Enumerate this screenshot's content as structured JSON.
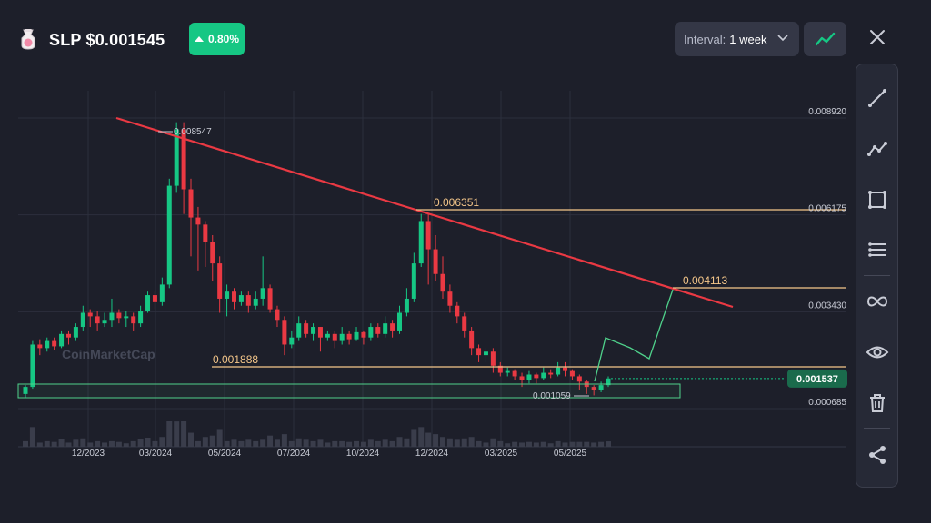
{
  "header": {
    "title": "SLP $0.001545",
    "change": "0.80%",
    "interval_label": "Interval:",
    "interval_value": "1 week"
  },
  "icons": [
    "coin-icon",
    "arrow-up-icon",
    "chevron-down-icon",
    "line-chart-icon",
    "close-icon",
    "trendline-icon",
    "polyline-icon",
    "rectangle-icon",
    "horizontal-lines-icon",
    "infinity-icon",
    "eye-icon",
    "trash-icon",
    "share-icon"
  ],
  "colors": {
    "up": "#16c784",
    "down": "#ea3943",
    "trend": "#ea3943",
    "level": "#f5c78a",
    "zone": "#4fd18b",
    "bg": "#1d1f2a"
  },
  "watermark": "CoinMarketCap",
  "chart_data": {
    "type": "candlestick",
    "x_ticks": [
      "12/2023",
      "03/2024",
      "05/2024",
      "07/2024",
      "10/2024",
      "12/2024",
      "03/2025",
      "05/2025"
    ],
    "y_ticks": [
      "0.008920",
      "0.006175",
      "0.003430",
      "0.000685"
    ],
    "y_tick_values": [
      0.00892,
      0.006175,
      0.00343,
      0.000685
    ],
    "current_price": "0.001537",
    "current_price_value": 0.001537,
    "annotations": {
      "high": "0.008547",
      "low": "0.001059",
      "resistance_1": "0.006351",
      "target": "0.004113",
      "support": "0.001888"
    },
    "candles": [
      [
        0.0011,
        0.0013,
        0.001,
        0.00135
      ],
      [
        0.0013,
        0.0025,
        0.00125,
        0.0026
      ],
      [
        0.0025,
        0.0024,
        0.0022,
        0.00265
      ],
      [
        0.0024,
        0.0026,
        0.0023,
        0.0027
      ],
      [
        0.0026,
        0.00245,
        0.00235,
        0.0027
      ],
      [
        0.00245,
        0.0028,
        0.0024,
        0.0029
      ],
      [
        0.0028,
        0.0027,
        0.0025,
        0.0029
      ],
      [
        0.0027,
        0.003,
        0.0026,
        0.0031
      ],
      [
        0.003,
        0.0034,
        0.0029,
        0.0036
      ],
      [
        0.0034,
        0.0033,
        0.003,
        0.0035
      ],
      [
        0.0033,
        0.0031,
        0.0029,
        0.00345
      ],
      [
        0.0031,
        0.0032,
        0.003,
        0.0034
      ],
      [
        0.0032,
        0.0034,
        0.003,
        0.0038
      ],
      [
        0.0034,
        0.00325,
        0.0031,
        0.0035
      ],
      [
        0.00325,
        0.0033,
        0.003,
        0.00345
      ],
      [
        0.0033,
        0.0031,
        0.0029,
        0.0034
      ],
      [
        0.0031,
        0.00345,
        0.003,
        0.0036
      ],
      [
        0.00345,
        0.0039,
        0.0034,
        0.004
      ],
      [
        0.0039,
        0.0037,
        0.0035,
        0.004
      ],
      [
        0.0037,
        0.0042,
        0.0036,
        0.0044
      ],
      [
        0.0042,
        0.007,
        0.0041,
        0.0072
      ],
      [
        0.007,
        0.0086,
        0.0068,
        0.0088
      ],
      [
        0.0086,
        0.0069,
        0.0062,
        0.0088
      ],
      [
        0.0069,
        0.0061,
        0.005,
        0.0072
      ],
      [
        0.0061,
        0.0059,
        0.0046,
        0.0064
      ],
      [
        0.0059,
        0.0054,
        0.0047,
        0.006
      ],
      [
        0.0054,
        0.0048,
        0.0043,
        0.0056
      ],
      [
        0.0048,
        0.0038,
        0.0034,
        0.005
      ],
      [
        0.0038,
        0.004,
        0.0033,
        0.0042
      ],
      [
        0.004,
        0.0037,
        0.0035,
        0.0041
      ],
      [
        0.0037,
        0.0039,
        0.0036,
        0.004
      ],
      [
        0.0039,
        0.0036,
        0.0034,
        0.004
      ],
      [
        0.0036,
        0.0038,
        0.0035,
        0.004
      ],
      [
        0.0038,
        0.0041,
        0.0036,
        0.005
      ],
      [
        0.0041,
        0.0035,
        0.0034,
        0.0042
      ],
      [
        0.0035,
        0.0032,
        0.003,
        0.0036
      ],
      [
        0.0032,
        0.0025,
        0.0022,
        0.0033
      ],
      [
        0.0025,
        0.0027,
        0.0024,
        0.0029
      ],
      [
        0.0027,
        0.0031,
        0.0026,
        0.0033
      ],
      [
        0.0031,
        0.0028,
        0.0027,
        0.0032
      ],
      [
        0.0028,
        0.003,
        0.0026,
        0.0031
      ],
      [
        0.003,
        0.0027,
        0.0023,
        0.003
      ],
      [
        0.0027,
        0.0028,
        0.0026,
        0.0029
      ],
      [
        0.0028,
        0.0026,
        0.0024,
        0.0029
      ],
      [
        0.0026,
        0.0028,
        0.0025,
        0.003
      ],
      [
        0.0028,
        0.00265,
        0.0025,
        0.0029
      ],
      [
        0.00265,
        0.00285,
        0.0026,
        0.003
      ],
      [
        0.00285,
        0.0027,
        0.0025,
        0.0029
      ],
      [
        0.0027,
        0.003,
        0.0026,
        0.0031
      ],
      [
        0.003,
        0.0028,
        0.0027,
        0.0031
      ],
      [
        0.0028,
        0.0031,
        0.0027,
        0.0033
      ],
      [
        0.0031,
        0.0029,
        0.0027,
        0.0032
      ],
      [
        0.0029,
        0.0034,
        0.0028,
        0.0036
      ],
      [
        0.0034,
        0.0038,
        0.0033,
        0.0041
      ],
      [
        0.0038,
        0.0048,
        0.0037,
        0.0051
      ],
      [
        0.0048,
        0.006,
        0.0047,
        0.0062
      ],
      [
        0.006,
        0.0052,
        0.0042,
        0.0062
      ],
      [
        0.0052,
        0.0045,
        0.0043,
        0.0056
      ],
      [
        0.0045,
        0.004,
        0.0038,
        0.005
      ],
      [
        0.004,
        0.0036,
        0.0034,
        0.0042
      ],
      [
        0.0036,
        0.0033,
        0.0031,
        0.0037
      ],
      [
        0.0033,
        0.0029,
        0.0027,
        0.0034
      ],
      [
        0.0029,
        0.0024,
        0.0022,
        0.003
      ],
      [
        0.0024,
        0.0022,
        0.002,
        0.0025
      ],
      [
        0.0022,
        0.0023,
        0.002,
        0.0024
      ],
      [
        0.0023,
        0.0019,
        0.0017,
        0.0024
      ],
      [
        0.0019,
        0.0017,
        0.0016,
        0.002
      ],
      [
        0.0017,
        0.00175,
        0.0016,
        0.00185
      ],
      [
        0.00175,
        0.0016,
        0.0015,
        0.0018
      ],
      [
        0.0016,
        0.0015,
        0.0013,
        0.0017
      ],
      [
        0.0015,
        0.00165,
        0.0014,
        0.00175
      ],
      [
        0.00165,
        0.00155,
        0.0014,
        0.0017
      ],
      [
        0.00155,
        0.0017,
        0.0015,
        0.00185
      ],
      [
        0.0017,
        0.00165,
        0.00155,
        0.0018
      ],
      [
        0.00165,
        0.00185,
        0.0016,
        0.002
      ],
      [
        0.00185,
        0.00175,
        0.0016,
        0.002
      ],
      [
        0.00175,
        0.0016,
        0.0015,
        0.0018
      ],
      [
        0.0016,
        0.00145,
        0.0012,
        0.00165
      ],
      [
        0.00145,
        0.0013,
        0.0011,
        0.0015
      ],
      [
        0.0013,
        0.0012,
        0.00106,
        0.00135
      ],
      [
        0.0012,
        0.00135,
        0.00115,
        0.00145
      ],
      [
        0.00135,
        0.00154,
        0.0013,
        0.0016
      ]
    ]
  }
}
